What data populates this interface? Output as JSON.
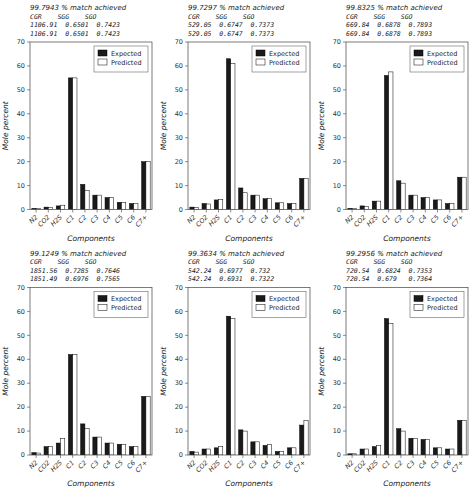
{
  "chart_data": [
    {
      "type": "bar",
      "xlabel": "Components",
      "ylabel": "Mole percent",
      "annotations": [
        "99.7943 % match achieved",
        "CGR    SGG    SGO",
        "1106.91  0.6501  0.7423",
        "1106.91  0.6501  0.7423"
      ],
      "categories": [
        "N2",
        "CO2",
        "H2S",
        "C1",
        "C2",
        "C3",
        "C4",
        "C5",
        "C6",
        "C7+"
      ],
      "series": [
        {
          "name": "Expected",
          "color": "#1a1a1a",
          "values": [
            0.5,
            1.0,
            1.5,
            55.0,
            10.5,
            6.0,
            5.0,
            3.0,
            2.5,
            20.0
          ]
        },
        {
          "name": "Predicted",
          "color": "#ffffff",
          "values": [
            0.5,
            0.8,
            1.8,
            55.0,
            8.0,
            6.0,
            5.0,
            3.0,
            2.5,
            20.0
          ]
        }
      ],
      "ylim": [
        0,
        70
      ],
      "yticks": [
        0,
        10,
        20,
        30,
        40,
        50,
        60,
        70
      ],
      "grid": false,
      "legend": "upper right"
    },
    {
      "type": "bar",
      "xlabel": "Components",
      "ylabel": "Mole percent",
      "annotations": [
        "99.7297 % match achieved",
        "CGR    SGG    SGO",
        "529.05  0.6747  0.7373",
        "529.05  0.6747  0.7373"
      ],
      "categories": [
        "N2",
        "CO2",
        "H2S",
        "C1",
        "C2",
        "C3",
        "C4",
        "C5",
        "C6",
        "C7+"
      ],
      "series": [
        {
          "name": "Expected",
          "color": "#1a1a1a",
          "values": [
            1.0,
            2.5,
            4.0,
            63.0,
            9.0,
            6.0,
            4.5,
            2.8,
            2.5,
            13.0
          ]
        },
        {
          "name": "Predicted",
          "color": "#ffffff",
          "values": [
            0.8,
            2.3,
            4.2,
            61.0,
            7.0,
            6.0,
            4.5,
            2.8,
            2.5,
            13.0
          ]
        }
      ],
      "ylim": [
        0,
        70
      ],
      "yticks": [
        0,
        10,
        20,
        30,
        40,
        50,
        60,
        70
      ],
      "grid": false,
      "legend": "upper right"
    },
    {
      "type": "bar",
      "xlabel": "Components",
      "ylabel": "Mole percent",
      "annotations": [
        "99.8325 % match achieved",
        "CGR    SGG    SGO",
        "669.84  0.6878  0.7893",
        "669.84  0.6878  0.7893"
      ],
      "categories": [
        "N2",
        "CO2",
        "H2S",
        "C1",
        "C2",
        "C3",
        "C4",
        "C5",
        "C6",
        "C7+"
      ],
      "series": [
        {
          "name": "Expected",
          "color": "#1a1a1a",
          "values": [
            0.5,
            1.5,
            3.5,
            56.0,
            12.0,
            6.0,
            5.0,
            4.0,
            2.5,
            13.5
          ]
        },
        {
          "name": "Predicted",
          "color": "#ffffff",
          "values": [
            0.5,
            1.3,
            3.5,
            57.5,
            11.0,
            6.0,
            5.0,
            4.0,
            2.5,
            13.5
          ]
        }
      ],
      "ylim": [
        0,
        70
      ],
      "yticks": [
        0,
        10,
        20,
        30,
        40,
        50,
        60,
        70
      ],
      "grid": false,
      "legend": "upper right"
    },
    {
      "type": "bar",
      "xlabel": "Components",
      "ylabel": "Mole percent",
      "annotations": [
        "99.1249 % match achieved",
        "CGR    SGG    SGO",
        "1851.56  0.7285  0.7646",
        "1851.49  0.6976  0.7565"
      ],
      "categories": [
        "N2",
        "CO2",
        "H2S",
        "C1",
        "C2",
        "C3",
        "C4",
        "C5",
        "C6",
        "C7+"
      ],
      "series": [
        {
          "name": "Expected",
          "color": "#1a1a1a",
          "values": [
            1.0,
            3.5,
            5.0,
            42.0,
            13.0,
            7.5,
            5.0,
            4.5,
            3.5,
            24.5
          ]
        },
        {
          "name": "Predicted",
          "color": "#ffffff",
          "values": [
            0.8,
            3.5,
            7.0,
            42.0,
            11.0,
            7.5,
            5.0,
            4.5,
            3.5,
            24.5
          ]
        }
      ],
      "ylim": [
        0,
        70
      ],
      "yticks": [
        0,
        10,
        20,
        30,
        40,
        50,
        60,
        70
      ],
      "grid": false,
      "legend": "upper right"
    },
    {
      "type": "bar",
      "xlabel": "Components",
      "ylabel": "Mole percent",
      "annotations": [
        "99.3634 % match achieved",
        "CGR    SGG    SGO",
        "542.24  0.6977  0.732",
        "542.24  0.6931  0.7322"
      ],
      "categories": [
        "N2",
        "CO2",
        "H2S",
        "C1",
        "C2",
        "C3",
        "C4",
        "C5",
        "C6",
        "C7+"
      ],
      "series": [
        {
          "name": "Expected",
          "color": "#1a1a1a",
          "values": [
            1.5,
            2.5,
            3.0,
            58.0,
            10.5,
            5.5,
            4.0,
            1.5,
            3.0,
            12.5
          ]
        },
        {
          "name": "Predicted",
          "color": "#ffffff",
          "values": [
            1.2,
            2.5,
            3.5,
            57.0,
            10.0,
            5.5,
            4.5,
            1.5,
            3.0,
            14.5
          ]
        }
      ],
      "ylim": [
        0,
        70
      ],
      "yticks": [
        0,
        10,
        20,
        30,
        40,
        50,
        60,
        70
      ],
      "grid": false,
      "legend": "upper right"
    },
    {
      "type": "bar",
      "xlabel": "Components",
      "ylabel": "Mole percent",
      "annotations": [
        "99.2956 % match achieved",
        "CGR    SGG    SGO",
        "720.54  0.6824  0.7353",
        "720.54  0.679   0.7364"
      ],
      "categories": [
        "N2",
        "CO2",
        "H2S",
        "C1",
        "C2",
        "C3",
        "C4",
        "C5",
        "C6",
        "C7+"
      ],
      "series": [
        {
          "name": "Expected",
          "color": "#1a1a1a",
          "values": [
            0.5,
            2.5,
            3.5,
            57.0,
            11.0,
            7.0,
            6.5,
            3.0,
            2.5,
            14.5
          ]
        },
        {
          "name": "Predicted",
          "color": "#ffffff",
          "values": [
            0.5,
            2.5,
            4.0,
            55.0,
            10.0,
            7.0,
            6.5,
            3.0,
            2.5,
            14.5
          ]
        }
      ],
      "ylim": [
        0,
        70
      ],
      "yticks": [
        0,
        10,
        20,
        30,
        40,
        50,
        60,
        70
      ],
      "grid": false,
      "legend": "upper right"
    }
  ]
}
